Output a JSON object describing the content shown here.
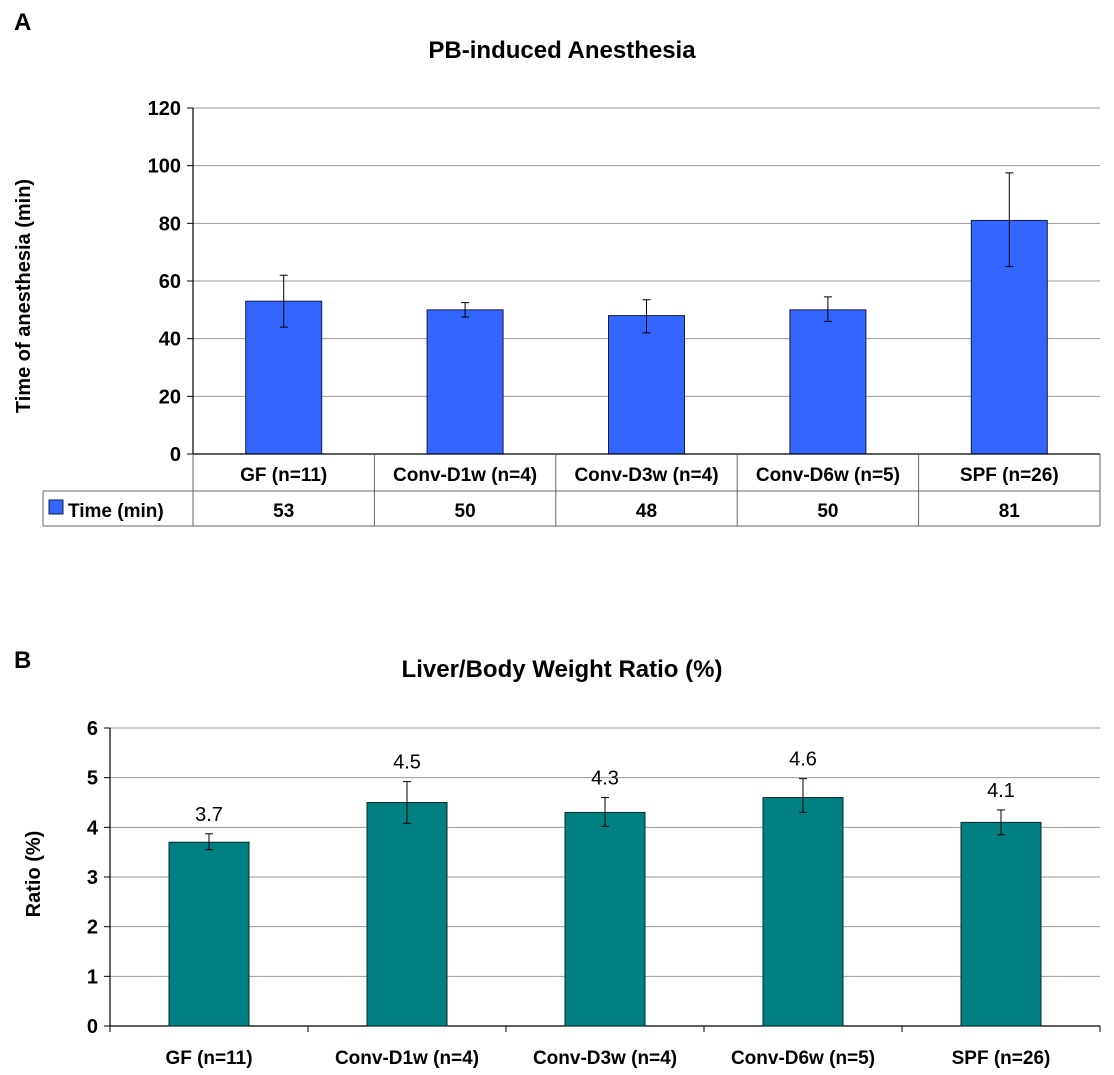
{
  "chart_data": [
    {
      "panel_label": "A",
      "type": "bar",
      "title": "PB-induced Anesthesia",
      "ylabel": "Time of anesthesia (min)",
      "ylim": [
        0,
        120
      ],
      "yticks": [
        0,
        20,
        40,
        60,
        80,
        100,
        120
      ],
      "grid": "horizontal",
      "categories": [
        "GF (n=11)",
        "Conv-D1w (n=4)",
        "Conv-D3w (n=4)",
        "Conv-D6w (n=5)",
        "SPF (n=26)"
      ],
      "series": [
        {
          "name": "Time (min)",
          "color": "#3366FF",
          "values": [
            53,
            50,
            48,
            50,
            81
          ],
          "error_low": [
            44,
            47.5,
            42,
            46,
            65
          ],
          "error_high": [
            62,
            52.5,
            53.5,
            54.5,
            97.5
          ]
        }
      ],
      "data_table": {
        "legend_label": "Time (min)",
        "values": [
          "53",
          "50",
          "48",
          "50",
          "81"
        ]
      }
    },
    {
      "panel_label": "B",
      "type": "bar",
      "title": "Liver/Body Weight Ratio (%)",
      "ylabel": "Ratio (%)",
      "ylim": [
        0,
        6
      ],
      "yticks": [
        0,
        1,
        2,
        3,
        4,
        5,
        6
      ],
      "grid": "horizontal",
      "categories": [
        "GF (n=11)",
        "Conv-D1w (n=4)",
        "Conv-D3w (n=4)",
        "Conv-D6w (n=5)",
        "SPF (n=26)"
      ],
      "series": [
        {
          "color": "#008080",
          "values": [
            3.7,
            4.5,
            4.3,
            4.6,
            4.1
          ],
          "error_low": [
            3.55,
            4.08,
            4.02,
            4.3,
            3.85
          ],
          "error_high": [
            3.87,
            4.92,
            4.6,
            4.98,
            4.35
          ]
        }
      ],
      "data_labels": [
        "3.7",
        "4.5",
        "4.3",
        "4.6",
        "4.1"
      ]
    }
  ]
}
